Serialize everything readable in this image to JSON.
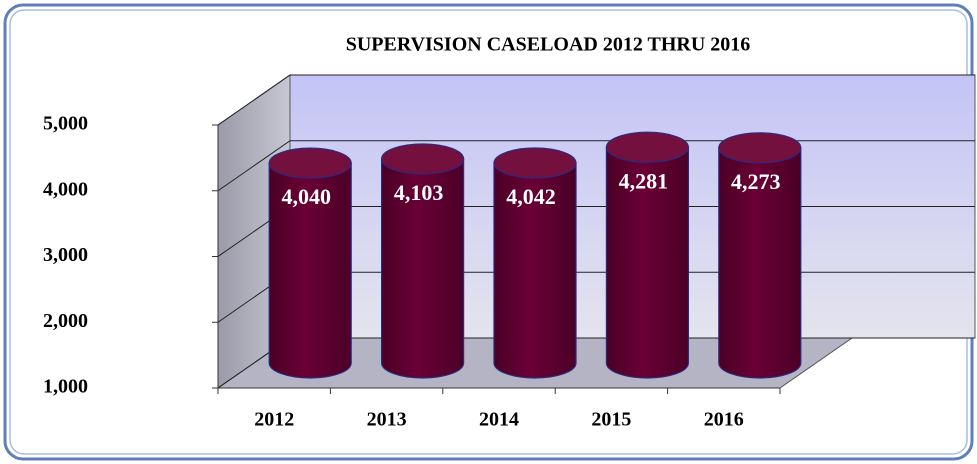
{
  "chart_data": {
    "type": "bar",
    "title": "SUPERVISION CASELOAD 2012 THRU 2016",
    "categories": [
      "2012",
      "2013",
      "2014",
      "2015",
      "2016"
    ],
    "values": [
      4040,
      4103,
      4042,
      4281,
      4273
    ],
    "value_labels": [
      "4,040",
      "4,103",
      "4,042",
      "4,281",
      "4,273"
    ],
    "color": "#5c0030",
    "ylim": [
      1000,
      5000
    ],
    "yticks": [
      {
        "value": 1000,
        "label": "1,000"
      },
      {
        "value": 2000,
        "label": "2,000"
      },
      {
        "value": 3000,
        "label": "3,000"
      },
      {
        "value": 4000,
        "label": "4,000"
      },
      {
        "value": 5000,
        "label": "5,000"
      }
    ],
    "grid": true
  }
}
